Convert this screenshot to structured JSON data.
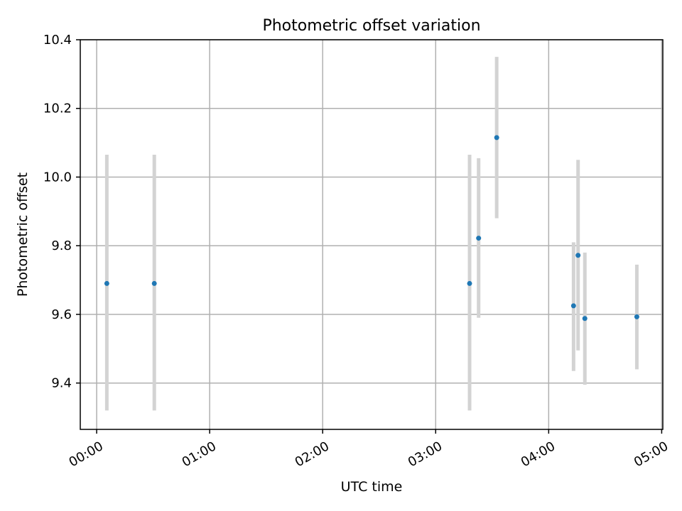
{
  "chart_data": {
    "type": "scatter",
    "title": "Photometric offset variation",
    "xlabel": "UTC time",
    "ylabel": "Photometric offset",
    "x_unit": "hours (UTC)",
    "xlim": [
      -0.145,
      5.01
    ],
    "ylim": [
      9.265,
      10.4
    ],
    "xticks": [
      {
        "value": 0,
        "label": "00:00"
      },
      {
        "value": 1,
        "label": "01:00"
      },
      {
        "value": 2,
        "label": "02:00"
      },
      {
        "value": 3,
        "label": "03:00"
      },
      {
        "value": 4,
        "label": "04:00"
      },
      {
        "value": 5,
        "label": "05:00"
      }
    ],
    "yticks": [
      {
        "value": 9.4,
        "label": "9.4"
      },
      {
        "value": 9.6,
        "label": "9.6"
      },
      {
        "value": 9.8,
        "label": "9.8"
      },
      {
        "value": 10.0,
        "label": "10.0"
      },
      {
        "value": 10.2,
        "label": "10.2"
      },
      {
        "value": 10.4,
        "label": "10.4"
      }
    ],
    "grid": true,
    "legend": "none",
    "colors": {
      "point": "#1f77b4",
      "errorbar": "#d3d3d3"
    },
    "points": [
      {
        "x": 0.09,
        "y": 9.69,
        "ylow": 9.32,
        "yhigh": 10.065
      },
      {
        "x": 0.51,
        "y": 9.69,
        "ylow": 9.32,
        "yhigh": 10.065
      },
      {
        "x": 3.3,
        "y": 9.69,
        "ylow": 9.32,
        "yhigh": 10.065
      },
      {
        "x": 3.38,
        "y": 9.822,
        "ylow": 9.59,
        "yhigh": 10.055
      },
      {
        "x": 3.54,
        "y": 10.115,
        "ylow": 9.88,
        "yhigh": 10.35
      },
      {
        "x": 4.22,
        "y": 9.625,
        "ylow": 9.435,
        "yhigh": 9.81
      },
      {
        "x": 4.26,
        "y": 9.772,
        "ylow": 9.495,
        "yhigh": 10.05
      },
      {
        "x": 4.32,
        "y": 9.588,
        "ylow": 9.395,
        "yhigh": 9.78
      },
      {
        "x": 4.78,
        "y": 9.593,
        "ylow": 9.44,
        "yhigh": 9.745
      }
    ]
  }
}
